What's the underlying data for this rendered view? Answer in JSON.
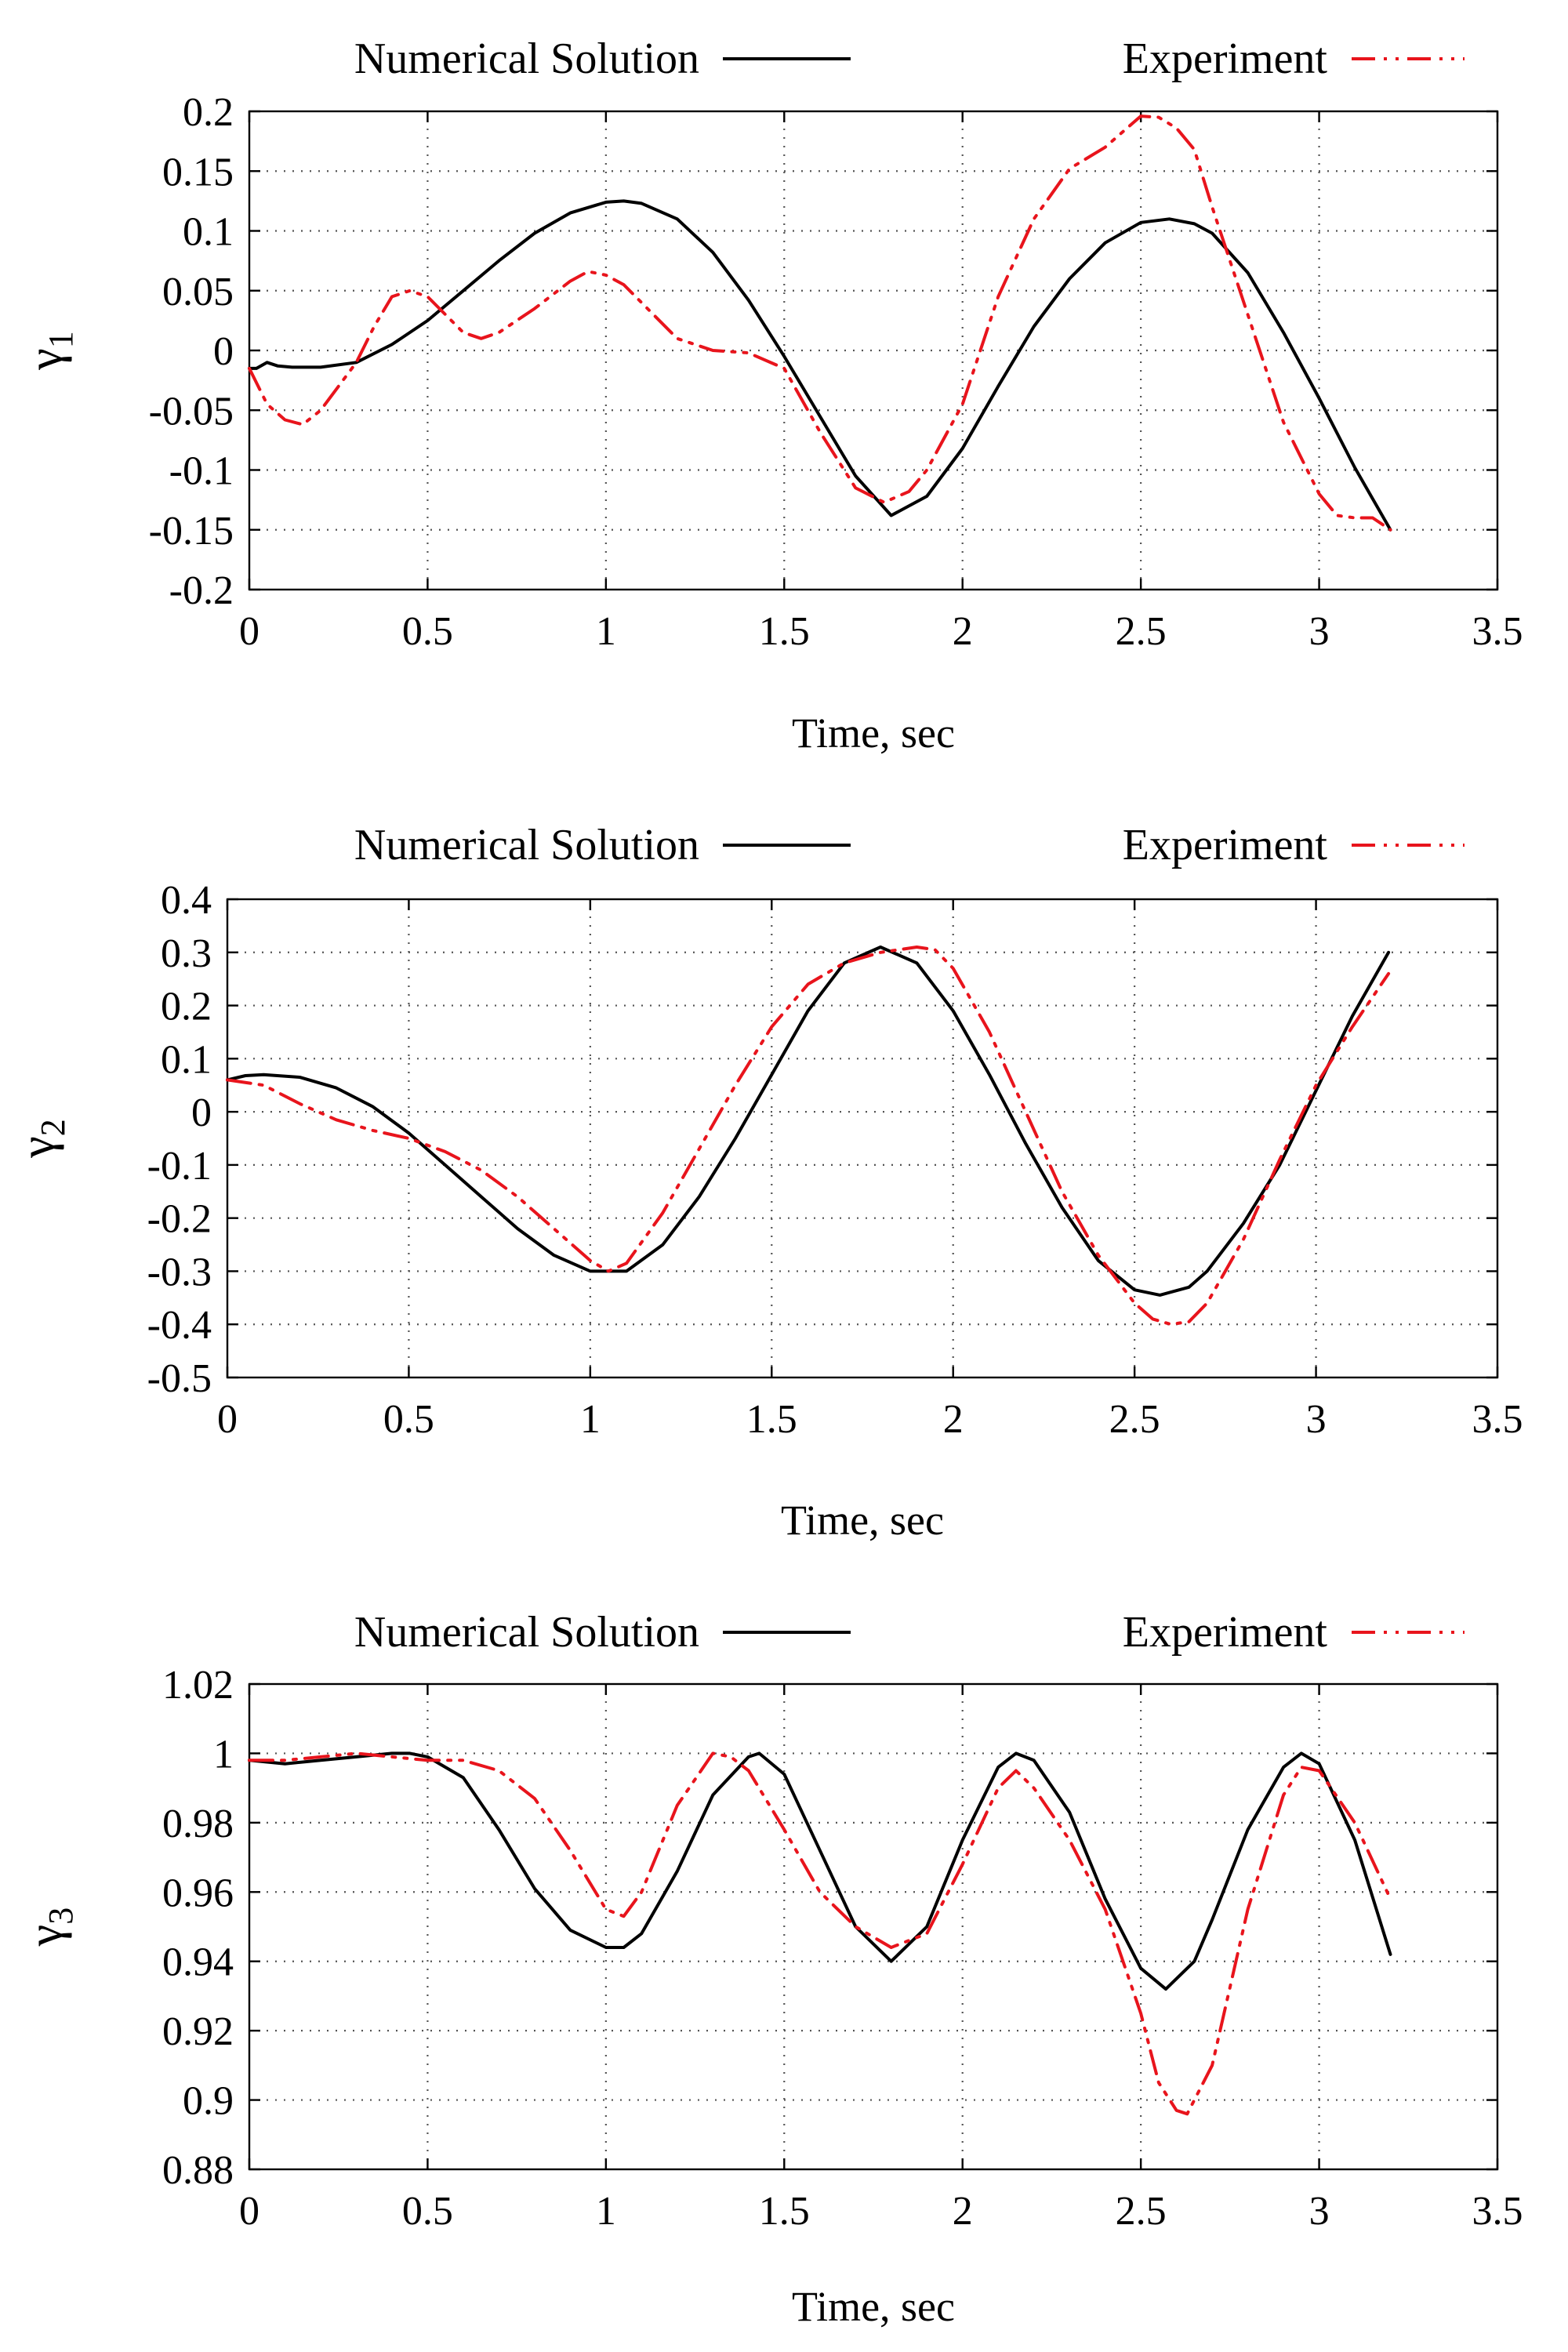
{
  "chart_data": [
    {
      "type": "line",
      "ylabel": "γ",
      "ylabel_subscript": "1",
      "xlabel": "Time, sec",
      "xlim": [
        0,
        3.5
      ],
      "ylim": [
        -0.2,
        0.2
      ],
      "x_ticks": [
        0,
        0.5,
        1,
        1.5,
        2,
        2.5,
        3,
        3.5
      ],
      "x_tick_labels": [
        "0",
        "0.5",
        "1",
        "1.5",
        "2",
        "2.5",
        "3",
        "3.5"
      ],
      "y_ticks": [
        -0.2,
        -0.15,
        -0.1,
        -0.05,
        0,
        0.05,
        0.1,
        0.15,
        0.2
      ],
      "y_tick_labels": [
        "-0.2",
        "-0.15",
        "-0.1",
        "-0.05",
        "0",
        "0.05",
        "0.1",
        "0.15",
        "0.2"
      ],
      "grid": true,
      "legend_position": "top",
      "series": [
        {
          "name": "Numerical Solution",
          "color": "#000000",
          "style": "solid",
          "x": [
            0,
            0.02,
            0.05,
            0.08,
            0.12,
            0.2,
            0.3,
            0.4,
            0.5,
            0.6,
            0.7,
            0.8,
            0.9,
            1.0,
            1.05,
            1.1,
            1.2,
            1.3,
            1.4,
            1.5,
            1.6,
            1.7,
            1.8,
            1.9,
            2.0,
            2.1,
            2.2,
            2.3,
            2.4,
            2.5,
            2.58,
            2.65,
            2.7,
            2.8,
            2.9,
            3.0,
            3.1,
            3.2
          ],
          "y": [
            -0.015,
            -0.015,
            -0.01,
            -0.013,
            -0.014,
            -0.014,
            -0.01,
            0.005,
            0.025,
            0.05,
            0.075,
            0.098,
            0.115,
            0.124,
            0.125,
            0.123,
            0.11,
            0.082,
            0.042,
            -0.005,
            -0.055,
            -0.105,
            -0.138,
            -0.122,
            -0.082,
            -0.03,
            0.02,
            0.06,
            0.09,
            0.107,
            0.11,
            0.106,
            0.098,
            0.065,
            0.015,
            -0.04,
            -0.098,
            -0.15
          ]
        },
        {
          "name": "Experiment",
          "color": "#e8141c",
          "style": "dash-dot-dot",
          "x": [
            0,
            0.05,
            0.1,
            0.15,
            0.2,
            0.3,
            0.35,
            0.4,
            0.45,
            0.5,
            0.55,
            0.6,
            0.65,
            0.7,
            0.8,
            0.9,
            0.95,
            1.0,
            1.05,
            1.1,
            1.2,
            1.3,
            1.4,
            1.5,
            1.6,
            1.7,
            1.78,
            1.85,
            1.9,
            2.0,
            2.1,
            2.2,
            2.3,
            2.4,
            2.45,
            2.5,
            2.55,
            2.6,
            2.65,
            2.7,
            2.8,
            2.9,
            3.0,
            3.05,
            3.1,
            3.15,
            3.2
          ],
          "y": [
            -0.015,
            -0.045,
            -0.058,
            -0.062,
            -0.05,
            -0.01,
            0.02,
            0.045,
            0.05,
            0.045,
            0.03,
            0.015,
            0.01,
            0.015,
            0.035,
            0.058,
            0.066,
            0.063,
            0.055,
            0.04,
            0.01,
            0.0,
            -0.002,
            -0.015,
            -0.068,
            -0.115,
            -0.127,
            -0.118,
            -0.1,
            -0.045,
            0.045,
            0.11,
            0.152,
            0.17,
            0.183,
            0.196,
            0.195,
            0.186,
            0.168,
            0.12,
            0.03,
            -0.06,
            -0.12,
            -0.138,
            -0.14,
            -0.14,
            -0.15
          ]
        }
      ]
    },
    {
      "type": "line",
      "ylabel": "γ",
      "ylabel_subscript": "2",
      "xlabel": "Time, sec",
      "xlim": [
        0,
        3.5
      ],
      "ylim": [
        -0.5,
        0.4
      ],
      "x_ticks": [
        0,
        0.5,
        1,
        1.5,
        2,
        2.5,
        3,
        3.5
      ],
      "x_tick_labels": [
        "0",
        "0.5",
        "1",
        "1.5",
        "2",
        "2.5",
        "3",
        "3.5"
      ],
      "y_ticks": [
        -0.5,
        -0.4,
        -0.3,
        -0.2,
        -0.1,
        0,
        0.1,
        0.2,
        0.3,
        0.4
      ],
      "y_tick_labels": [
        "-0.5",
        "-0.4",
        "-0.3",
        "-0.2",
        "-0.1",
        "0",
        "0.1",
        "0.2",
        "0.3",
        "0.4"
      ],
      "grid": true,
      "legend_position": "top",
      "series": [
        {
          "name": "Numerical Solution",
          "color": "#000000",
          "style": "solid",
          "x": [
            0,
            0.05,
            0.1,
            0.2,
            0.3,
            0.4,
            0.5,
            0.6,
            0.7,
            0.8,
            0.9,
            1.0,
            1.1,
            1.2,
            1.3,
            1.4,
            1.5,
            1.6,
            1.7,
            1.8,
            1.9,
            2.0,
            2.1,
            2.2,
            2.3,
            2.4,
            2.5,
            2.57,
            2.65,
            2.7,
            2.8,
            2.9,
            3.0,
            3.1,
            3.2
          ],
          "y": [
            0.06,
            0.068,
            0.07,
            0.065,
            0.045,
            0.01,
            -0.04,
            -0.1,
            -0.16,
            -0.22,
            -0.27,
            -0.3,
            -0.3,
            -0.25,
            -0.16,
            -0.05,
            0.07,
            0.19,
            0.28,
            0.31,
            0.28,
            0.19,
            0.07,
            -0.06,
            -0.18,
            -0.28,
            -0.335,
            -0.345,
            -0.33,
            -0.3,
            -0.21,
            -0.1,
            0.04,
            0.18,
            0.3
          ]
        },
        {
          "name": "Experiment",
          "color": "#e8141c",
          "style": "dash-dot-dot",
          "x": [
            0,
            0.1,
            0.2,
            0.3,
            0.4,
            0.5,
            0.6,
            0.7,
            0.8,
            0.9,
            1.0,
            1.05,
            1.1,
            1.2,
            1.3,
            1.4,
            1.5,
            1.6,
            1.7,
            1.8,
            1.9,
            1.95,
            2.0,
            2.1,
            2.2,
            2.3,
            2.4,
            2.5,
            2.55,
            2.6,
            2.65,
            2.7,
            2.8,
            2.9,
            3.0,
            3.1,
            3.2
          ],
          "y": [
            0.06,
            0.05,
            0.015,
            -0.015,
            -0.035,
            -0.05,
            -0.075,
            -0.11,
            -0.16,
            -0.22,
            -0.28,
            -0.3,
            -0.285,
            -0.19,
            -0.07,
            0.05,
            0.16,
            0.24,
            0.28,
            0.3,
            0.31,
            0.305,
            0.27,
            0.15,
            0.0,
            -0.15,
            -0.27,
            -0.36,
            -0.39,
            -0.4,
            -0.395,
            -0.36,
            -0.24,
            -0.09,
            0.05,
            0.16,
            0.26
          ]
        }
      ]
    },
    {
      "type": "line",
      "ylabel": "γ",
      "ylabel_subscript": "3",
      "xlabel": "Time, sec",
      "xlim": [
        0,
        3.5
      ],
      "ylim": [
        0.88,
        1.02
      ],
      "x_ticks": [
        0,
        0.5,
        1,
        1.5,
        2,
        2.5,
        3,
        3.5
      ],
      "x_tick_labels": [
        "0",
        "0.5",
        "1",
        "1.5",
        "2",
        "2.5",
        "3",
        "3.5"
      ],
      "y_ticks": [
        0.88,
        0.9,
        0.92,
        0.94,
        0.96,
        0.98,
        1.0,
        1.02
      ],
      "y_tick_labels": [
        "0.88",
        "0.9",
        "0.92",
        "0.94",
        "0.96",
        "0.98",
        "1",
        "1.02"
      ],
      "grid": true,
      "legend_position": "top",
      "series": [
        {
          "name": "Numerical Solution",
          "color": "#000000",
          "style": "solid",
          "x": [
            0,
            0.1,
            0.2,
            0.3,
            0.4,
            0.45,
            0.5,
            0.6,
            0.7,
            0.8,
            0.9,
            1.0,
            1.05,
            1.1,
            1.2,
            1.3,
            1.4,
            1.43,
            1.5,
            1.6,
            1.7,
            1.8,
            1.9,
            2.0,
            2.1,
            2.15,
            2.2,
            2.3,
            2.4,
            2.5,
            2.57,
            2.65,
            2.7,
            2.8,
            2.9,
            2.95,
            3.0,
            3.1,
            3.2
          ],
          "y": [
            0.998,
            0.997,
            0.998,
            0.999,
            1.0,
            1.0,
            0.999,
            0.993,
            0.978,
            0.961,
            0.949,
            0.944,
            0.944,
            0.948,
            0.966,
            0.988,
            0.999,
            1.0,
            0.994,
            0.972,
            0.95,
            0.94,
            0.95,
            0.975,
            0.996,
            1.0,
            0.998,
            0.983,
            0.958,
            0.938,
            0.932,
            0.94,
            0.952,
            0.978,
            0.996,
            1.0,
            0.997,
            0.975,
            0.942
          ]
        },
        {
          "name": "Experiment",
          "color": "#e8141c",
          "style": "dash-dot-dot",
          "x": [
            0,
            0.1,
            0.2,
            0.3,
            0.4,
            0.5,
            0.6,
            0.7,
            0.8,
            0.9,
            1.0,
            1.05,
            1.1,
            1.2,
            1.3,
            1.35,
            1.4,
            1.5,
            1.6,
            1.7,
            1.8,
            1.9,
            2.0,
            2.1,
            2.15,
            2.2,
            2.3,
            2.4,
            2.5,
            2.55,
            2.6,
            2.63,
            2.7,
            2.8,
            2.9,
            2.95,
            3.0,
            3.1,
            3.2
          ],
          "y": [
            0.998,
            0.998,
            0.999,
            1.0,
            0.999,
            0.998,
            0.998,
            0.995,
            0.987,
            0.972,
            0.955,
            0.953,
            0.96,
            0.985,
            1.0,
            0.999,
            0.995,
            0.978,
            0.96,
            0.95,
            0.944,
            0.948,
            0.968,
            0.99,
            0.995,
            0.99,
            0.975,
            0.955,
            0.925,
            0.905,
            0.897,
            0.896,
            0.91,
            0.955,
            0.988,
            0.996,
            0.995,
            0.98,
            0.958
          ]
        }
      ]
    }
  ]
}
